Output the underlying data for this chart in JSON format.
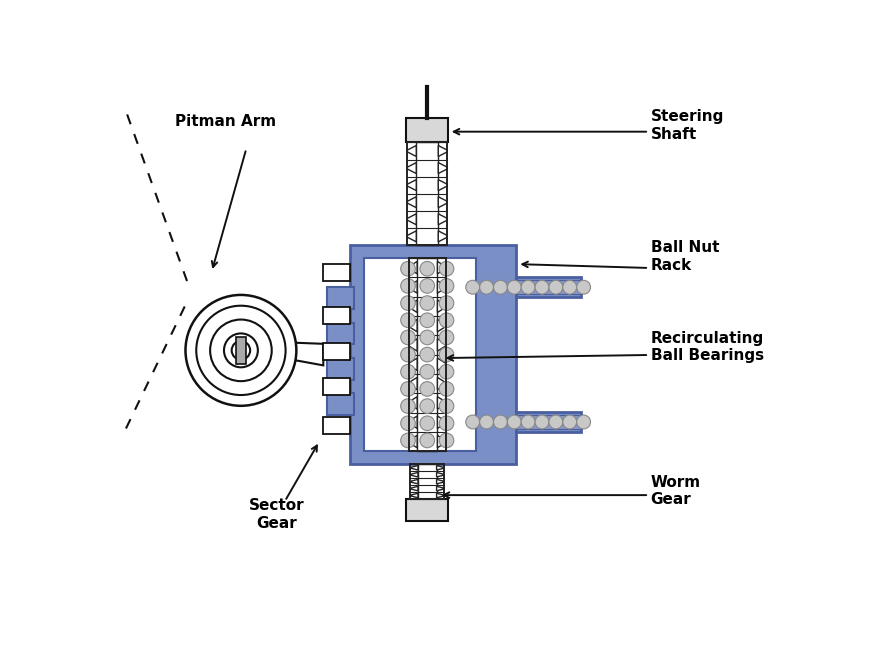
{
  "bg_color": "#ffffff",
  "blue_fill": "#7b8fc7",
  "blue_dark": "#4a5fa0",
  "grey_ball": "#c8c8c8",
  "grey_ball_edge": "#888888",
  "white_fill": "#ffffff",
  "black": "#111111",
  "light_grey": "#d8d8d8",
  "mid_grey": "#aaaaaa",
  "labels": {
    "pitman_arm": "Pitman Arm",
    "steering_shaft": "Steering\nShaft",
    "ball_nut_rack": "Ball Nut\nRack",
    "recirculating": "Recirculating\nBall Bearings",
    "sector_gear": "Sector\nGear",
    "worm_gear": "Worm\nGear"
  }
}
